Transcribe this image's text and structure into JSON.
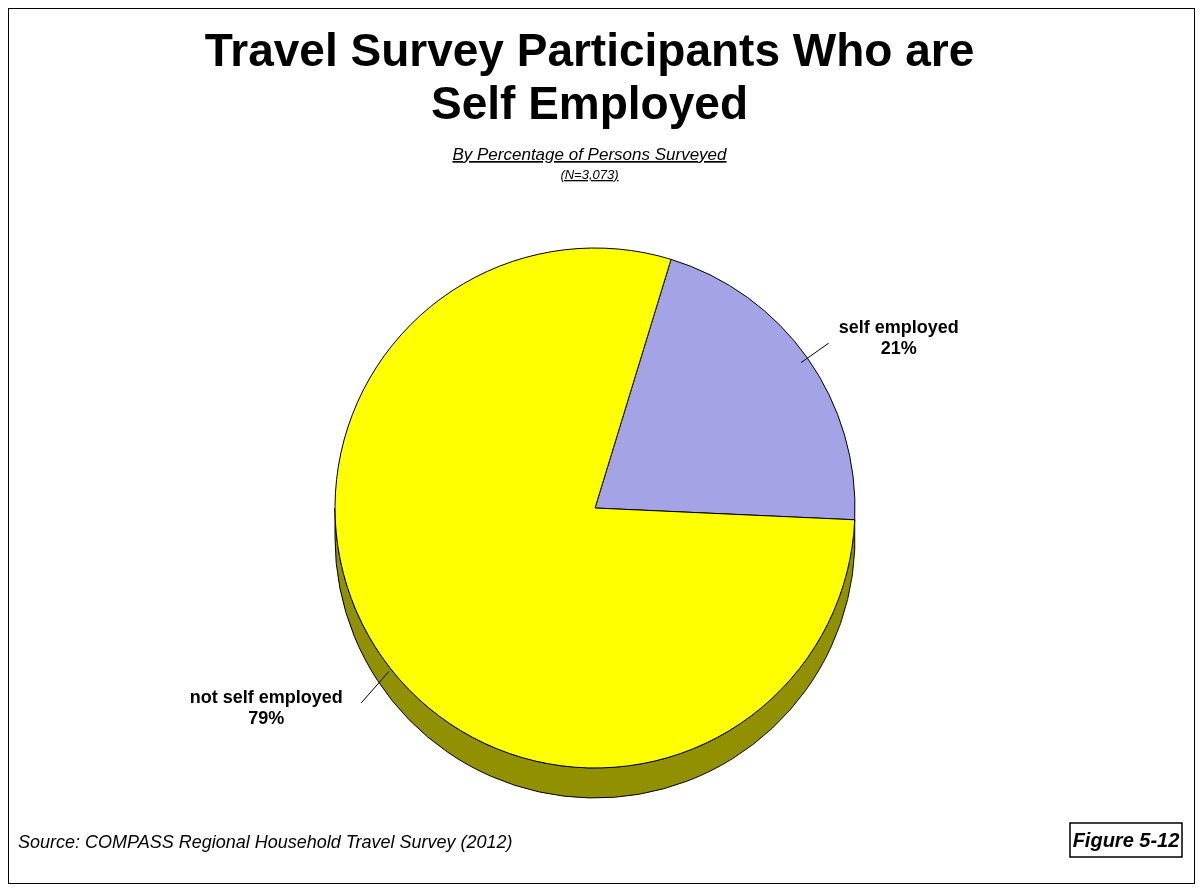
{
  "chart_data": {
    "type": "pie",
    "title": "Travel Survey Participants Who are Self Employed",
    "subtitle": "By Percentage of Persons Surveyed",
    "annotations": [
      "(N=3,073)",
      "Source:  COMPASS Regional Household Travel Survey (2012)",
      "Figure 5-12"
    ],
    "categories": [
      "self employed",
      "not self employed"
    ],
    "values": [
      21,
      79
    ],
    "colors": [
      "#a3a3e6",
      "#ffff00"
    ],
    "value_labels": [
      "21%",
      "79%"
    ]
  }
}
